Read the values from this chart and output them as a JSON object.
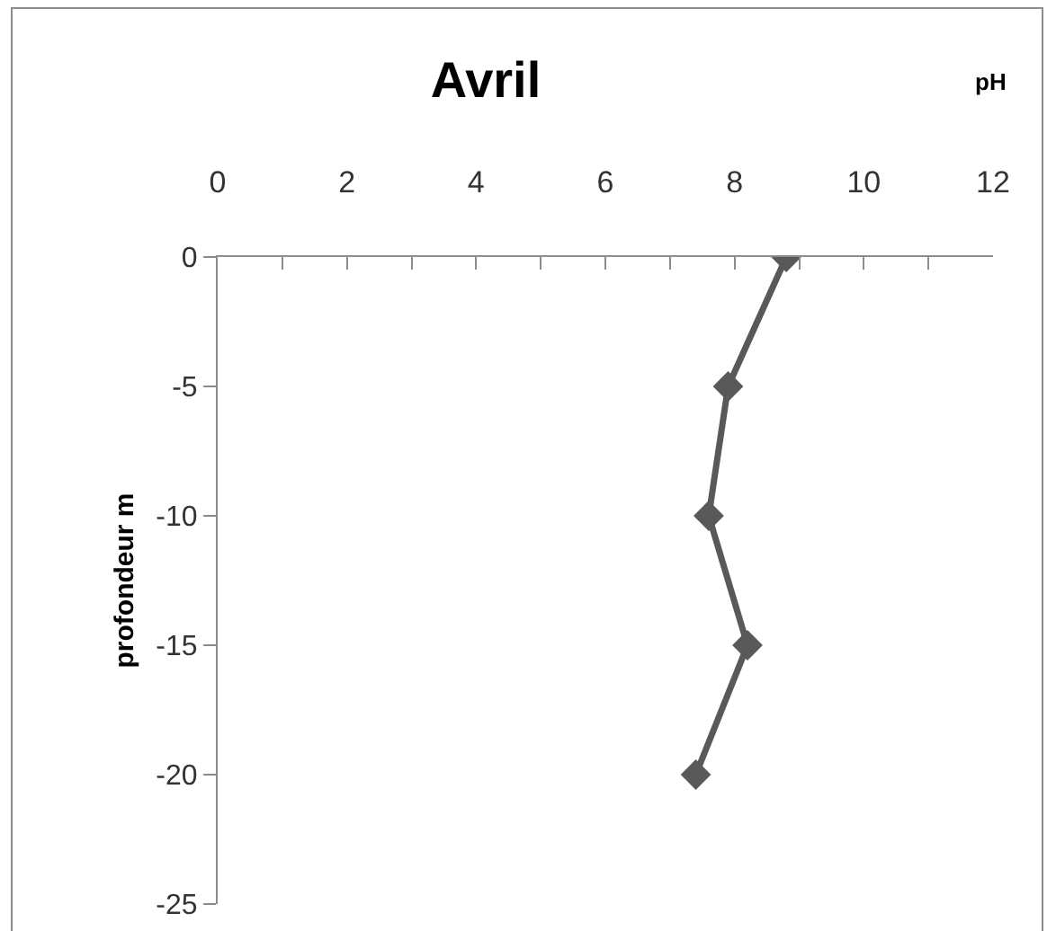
{
  "chart_data": {
    "type": "line",
    "title": "Avril",
    "xlabel": "pH",
    "ylabel": "profondeur m",
    "x": [
      8.8,
      7.9,
      7.6,
      8.2,
      7.4
    ],
    "values": [
      0,
      -5,
      -10,
      -15,
      -20
    ],
    "color": "#595959",
    "marker": "diamond",
    "line_style": "solid",
    "grid": false,
    "xlim": [
      0,
      12
    ],
    "xticks": [
      0,
      {
        "value": 1,
        "label": null
      },
      2,
      {
        "value": 3,
        "label": null
      },
      4,
      {
        "value": 5,
        "label": null
      },
      6,
      {
        "value": 7,
        "label": null
      },
      8,
      {
        "value": 9,
        "label": null
      },
      10,
      {
        "value": 11,
        "label": null
      },
      12
    ],
    "ylim": [
      -25,
      0
    ],
    "yticks": [
      0,
      -5,
      -10,
      -15,
      -20,
      -25
    ]
  }
}
